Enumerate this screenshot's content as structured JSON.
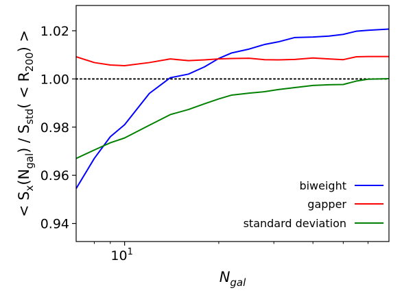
{
  "chart_data": {
    "type": "line",
    "xscale": "log",
    "xlim": [
      7,
      70
    ],
    "ylim": [
      0.9325,
      1.0305
    ],
    "xlabel": "N_gal",
    "ylabel": "< S_x(N_gal) / S_std( < R_200) >",
    "ytick_values": [
      0.94,
      0.96,
      0.98,
      1.0,
      1.02
    ],
    "ytick_labels": [
      "0.94",
      "0.96",
      "0.98",
      "1.00",
      "1.02"
    ],
    "xtick_values": [
      10
    ],
    "xtick_labels": [
      "10^1"
    ],
    "grid": false,
    "legend_position": "lower right",
    "reference_line": {
      "y": 1.0,
      "style": "dotted",
      "color": "#000000"
    },
    "series": [
      {
        "name": "biweight",
        "color": "#0000ff",
        "x": [
          7,
          8,
          9,
          10,
          12,
          14,
          16,
          18,
          20,
          22,
          25,
          28,
          31,
          35,
          40,
          45,
          50,
          55,
          60,
          70
        ],
        "y": [
          0.9545,
          0.967,
          0.976,
          0.981,
          0.994,
          1.0005,
          1.002,
          1.005,
          1.0085,
          1.0108,
          1.0124,
          1.0143,
          1.0154,
          1.0172,
          1.0174,
          1.0178,
          1.0185,
          1.0198,
          1.0202,
          1.0207
        ]
      },
      {
        "name": "gapper",
        "color": "#ff0000",
        "x": [
          7,
          8,
          9,
          10,
          12,
          14,
          16,
          18,
          20,
          22,
          25,
          28,
          31,
          35,
          40,
          45,
          50,
          55,
          60,
          70
        ],
        "y": [
          1.0092,
          1.0068,
          1.0058,
          1.0055,
          1.0068,
          1.0083,
          1.0076,
          1.0079,
          1.0083,
          1.0085,
          1.0086,
          1.008,
          1.0079,
          1.0081,
          1.0087,
          1.0083,
          1.008,
          1.0092,
          1.0093,
          1.0093
        ]
      },
      {
        "name": "standard deviation",
        "color": "#008000",
        "x": [
          7,
          8,
          9,
          10,
          12,
          14,
          16,
          18,
          20,
          22,
          25,
          28,
          31,
          35,
          40,
          45,
          50,
          55,
          60,
          70
        ],
        "y": [
          0.967,
          0.9705,
          0.9735,
          0.9755,
          0.9808,
          0.9852,
          0.9873,
          0.9897,
          0.9917,
          0.9933,
          0.9941,
          0.9947,
          0.9956,
          0.9964,
          0.9973,
          0.9976,
          0.9977,
          0.9991,
          0.9999,
          1.0001
        ]
      }
    ]
  }
}
